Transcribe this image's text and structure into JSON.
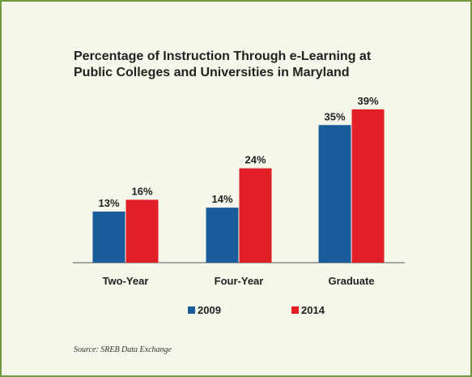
{
  "chart_data": {
    "type": "bar",
    "title_lines": [
      "Percentage of Instruction Through e-Learning at",
      "Public Colleges and Universities in Maryland"
    ],
    "categories": [
      "Two-Year",
      "Four-Year",
      "Graduate"
    ],
    "series": [
      {
        "name": "2009",
        "values": [
          13,
          14,
          35
        ],
        "labels": [
          "13%",
          "14%",
          "35%"
        ],
        "color": "#1a5b9a"
      },
      {
        "name": "2014",
        "values": [
          16,
          24,
          39
        ],
        "labels": [
          "16%",
          "24%",
          "39%"
        ],
        "color": "#e01f26"
      }
    ],
    "ylim": [
      0,
      45
    ],
    "grid": false,
    "legend_position": "bottom"
  },
  "source": "Source: SREB Data Exchange",
  "colors": {
    "border": "#6e9a3c",
    "background": "#f4f7ea"
  }
}
